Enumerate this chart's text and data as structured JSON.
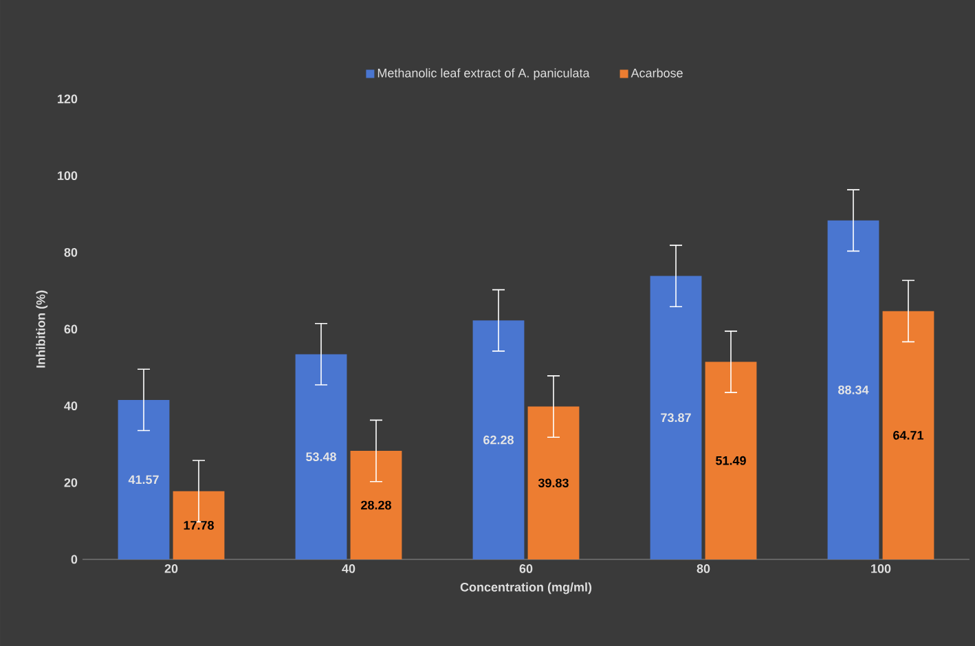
{
  "chart_data": {
    "type": "bar",
    "xlabel": "Concentration (mg/ml)",
    "ylabel": "Inhibition (%)",
    "categories": [
      "20",
      "40",
      "60",
      "80",
      "100"
    ],
    "series": [
      {
        "name": "Methanolic leaf extract of A. paniculata",
        "color": "#4a76d0",
        "values": [
          41.57,
          53.48,
          62.28,
          73.87,
          88.34
        ],
        "errors": [
          8,
          8,
          8,
          8,
          8
        ]
      },
      {
        "name": "Acarbose",
        "color": "#ed7d31",
        "values": [
          17.78,
          28.28,
          39.83,
          51.49,
          64.71
        ],
        "errors": [
          8,
          8,
          8,
          8,
          8
        ]
      }
    ],
    "ylim": [
      0,
      120
    ],
    "yticks": [
      0,
      20,
      40,
      60,
      80,
      100,
      120
    ],
    "legend": "top",
    "data_labels": true,
    "grid": false
  }
}
